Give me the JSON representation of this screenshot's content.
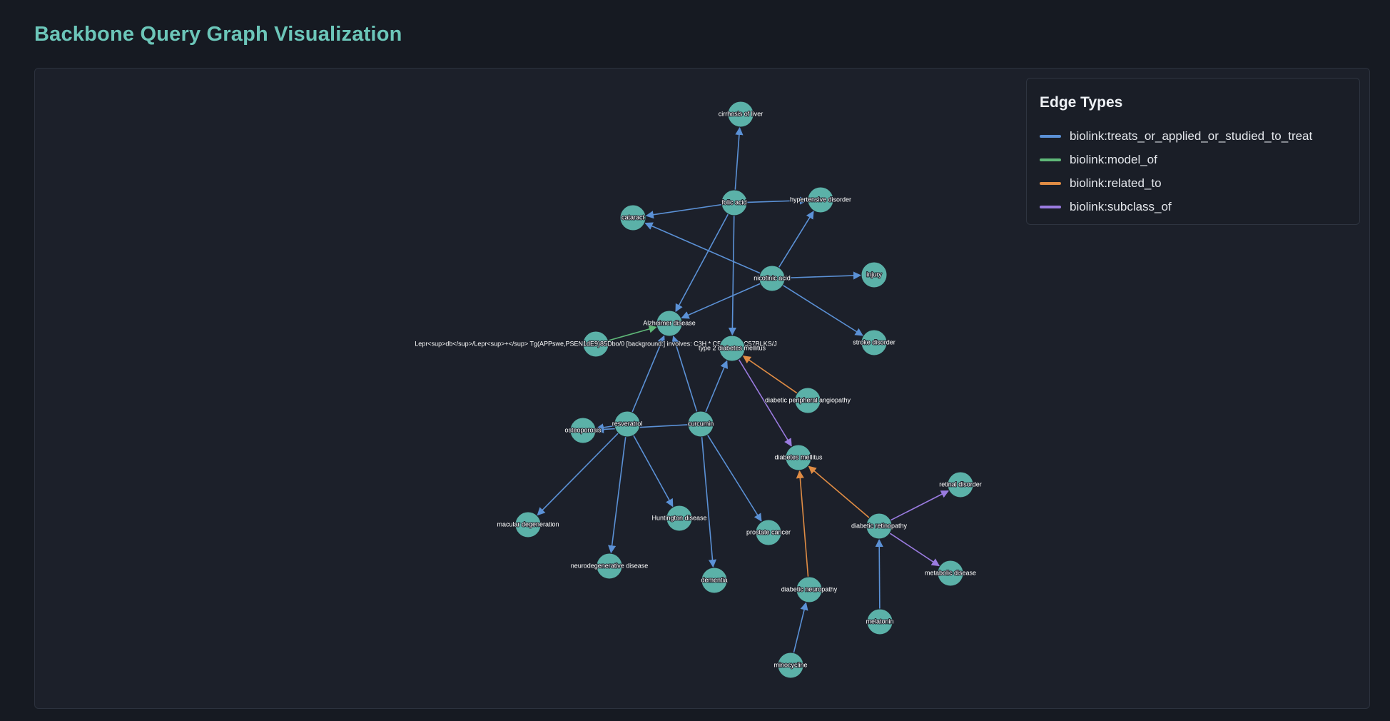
{
  "header": {
    "title": "Backbone Query Graph Visualization"
  },
  "colors": {
    "title": "#6cc6b9",
    "node": "#5bb1a8",
    "background": "#161a22",
    "panel": "#1c202a"
  },
  "legend": {
    "title": "Edge Types",
    "items": [
      {
        "label": "biolink:treats_or_applied_or_studied_to_treat",
        "color": "#5b91d6"
      },
      {
        "label": "biolink:model_of",
        "color": "#5fb878"
      },
      {
        "label": "biolink:related_to",
        "color": "#e08c44"
      },
      {
        "label": "biolink:subclass_of",
        "color": "#9a7be0"
      }
    ]
  },
  "graph": {
    "nodes": [
      {
        "id": "cirrhosis",
        "label": "cirrhosis of liver"
      },
      {
        "id": "folic",
        "label": "folic acid"
      },
      {
        "id": "hypertensive",
        "label": "hypertensive disorder"
      },
      {
        "id": "cataract",
        "label": "cataract"
      },
      {
        "id": "nicotinic",
        "label": "nicotinic acid"
      },
      {
        "id": "injury",
        "label": "injury"
      },
      {
        "id": "stroke",
        "label": "stroke disorder"
      },
      {
        "id": "alzheimer",
        "label": "Alzheimer disease"
      },
      {
        "id": "lepr",
        "label": "Lepr<sup>db</sup>/Lepr<sup>+</sup> Tg(APPswe,PSEN1dE9)85Dbo/0 [background:] involves: C3H * C57BL/6 * C57BLKS/J"
      },
      {
        "id": "t2dm",
        "label": "type 2 diabetes mellitus"
      },
      {
        "id": "dpa",
        "label": "diabetic peripheral angiopathy"
      },
      {
        "id": "osteoporosis",
        "label": "osteoporosis"
      },
      {
        "id": "resveratrol",
        "label": "resveratrol"
      },
      {
        "id": "curcumin",
        "label": "curcumin"
      },
      {
        "id": "dm",
        "label": "diabetes mellitus"
      },
      {
        "id": "retinal",
        "label": "retinal disorder"
      },
      {
        "id": "macular",
        "label": "macular degeneration"
      },
      {
        "id": "huntington",
        "label": "Huntington disease"
      },
      {
        "id": "prostate",
        "label": "prostate cancer"
      },
      {
        "id": "dr",
        "label": "diabetic retinopathy"
      },
      {
        "id": "neurodeg",
        "label": "neurodegenerative disease"
      },
      {
        "id": "dementia",
        "label": "dementia"
      },
      {
        "id": "metabolic",
        "label": "metabolic disease"
      },
      {
        "id": "dn",
        "label": "diabetic neuropathy"
      },
      {
        "id": "melatonin",
        "label": "melatonin"
      },
      {
        "id": "minocycline",
        "label": "minocycline"
      }
    ],
    "edges": [
      {
        "source": "folic",
        "target": "cirrhosis",
        "type": "biolink:treats_or_applied_or_studied_to_treat"
      },
      {
        "source": "folic",
        "target": "hypertensive",
        "type": "biolink:treats_or_applied_or_studied_to_treat"
      },
      {
        "source": "folic",
        "target": "cataract",
        "type": "biolink:treats_or_applied_or_studied_to_treat"
      },
      {
        "source": "folic",
        "target": "alzheimer",
        "type": "biolink:treats_or_applied_or_studied_to_treat"
      },
      {
        "source": "folic",
        "target": "t2dm",
        "type": "biolink:treats_or_applied_or_studied_to_treat"
      },
      {
        "source": "nicotinic",
        "target": "cataract",
        "type": "biolink:treats_or_applied_or_studied_to_treat"
      },
      {
        "source": "nicotinic",
        "target": "hypertensive",
        "type": "biolink:treats_or_applied_or_studied_to_treat"
      },
      {
        "source": "nicotinic",
        "target": "injury",
        "type": "biolink:treats_or_applied_or_studied_to_treat"
      },
      {
        "source": "nicotinic",
        "target": "stroke",
        "type": "biolink:treats_or_applied_or_studied_to_treat"
      },
      {
        "source": "nicotinic",
        "target": "alzheimer",
        "type": "biolink:treats_or_applied_or_studied_to_treat"
      },
      {
        "source": "lepr",
        "target": "alzheimer",
        "type": "biolink:model_of"
      },
      {
        "source": "resveratrol",
        "target": "alzheimer",
        "type": "biolink:treats_or_applied_or_studied_to_treat"
      },
      {
        "source": "curcumin",
        "target": "alzheimer",
        "type": "biolink:treats_or_applied_or_studied_to_treat"
      },
      {
        "source": "curcumin",
        "target": "t2dm",
        "type": "biolink:treats_or_applied_or_studied_to_treat"
      },
      {
        "source": "dpa",
        "target": "t2dm",
        "type": "biolink:related_to"
      },
      {
        "source": "t2dm",
        "target": "dm",
        "type": "biolink:subclass_of"
      },
      {
        "source": "resveratrol",
        "target": "osteoporosis",
        "type": "biolink:treats_or_applied_or_studied_to_treat"
      },
      {
        "source": "curcumin",
        "target": "osteoporosis",
        "type": "biolink:treats_or_applied_or_studied_to_treat"
      },
      {
        "source": "resveratrol",
        "target": "macular",
        "type": "biolink:treats_or_applied_or_studied_to_treat"
      },
      {
        "source": "resveratrol",
        "target": "neurodeg",
        "type": "biolink:treats_or_applied_or_studied_to_treat"
      },
      {
        "source": "resveratrol",
        "target": "huntington",
        "type": "biolink:treats_or_applied_or_studied_to_treat"
      },
      {
        "source": "curcumin",
        "target": "dementia",
        "type": "biolink:treats_or_applied_or_studied_to_treat"
      },
      {
        "source": "curcumin",
        "target": "prostate",
        "type": "biolink:treats_or_applied_or_studied_to_treat"
      },
      {
        "source": "dr",
        "target": "dm",
        "type": "biolink:related_to"
      },
      {
        "source": "dr",
        "target": "retinal",
        "type": "biolink:subclass_of"
      },
      {
        "source": "dr",
        "target": "metabolic",
        "type": "biolink:subclass_of"
      },
      {
        "source": "melatonin",
        "target": "dr",
        "type": "biolink:treats_or_applied_or_studied_to_treat"
      },
      {
        "source": "dn",
        "target": "dm",
        "type": "biolink:related_to"
      },
      {
        "source": "minocycline",
        "target": "dn",
        "type": "biolink:treats_or_applied_or_studied_to_treat"
      }
    ]
  }
}
